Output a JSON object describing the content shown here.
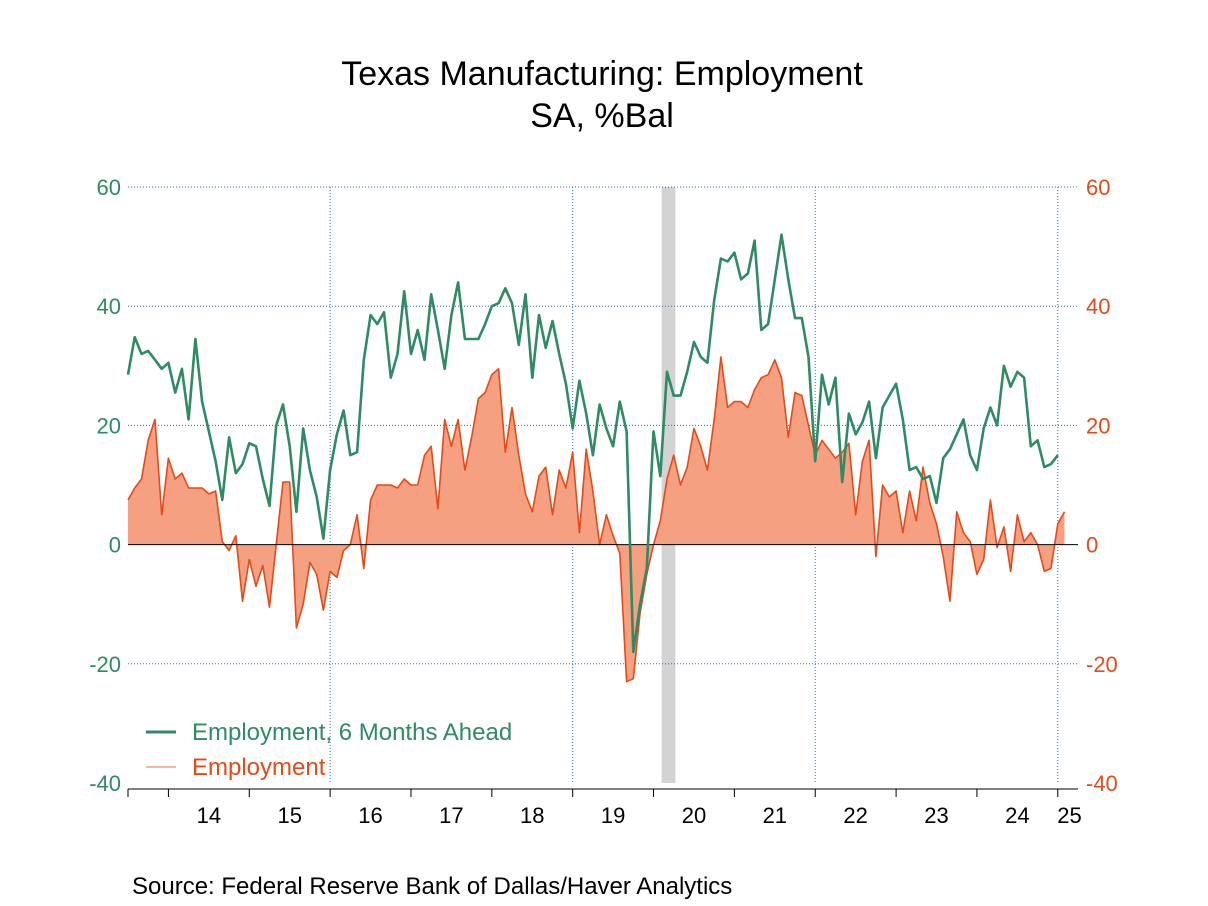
{
  "chart_data": {
    "type": "line",
    "title": "Texas Manufacturing: Employment",
    "subtitle": "SA, %Bal",
    "source": "Source:  Federal Reserve Bank of Dallas/Haver Analytics",
    "ylim": [
      -40,
      60
    ],
    "y_ticks": [
      60,
      40,
      20,
      0,
      -20,
      -40
    ],
    "y_tick_labels": [
      "60",
      "40",
      "20",
      "0",
      "-20",
      "-40"
    ],
    "x_range": [
      2013.5,
      2025.25
    ],
    "x_tick_labels": [
      "14",
      "15",
      "16",
      "17",
      "18",
      "19",
      "20",
      "21",
      "22",
      "23",
      "24",
      "25"
    ],
    "grid": "dotted",
    "legend_position": "bottom-left",
    "colors": {
      "ahead": "#2e8b66",
      "employment_line": "#e64a19",
      "employment_fill": "#f4a081",
      "recession": "#d3d3d3",
      "grid": "#2b6fb5"
    },
    "recession": [
      2020.1,
      2020.27
    ],
    "series": [
      {
        "name": "Employment, 6 Months Ahead",
        "style": "line",
        "values": [
          28.5,
          34.8,
          32.0,
          32.5,
          31.0,
          29.5,
          30.5,
          25.5,
          29.5,
          21.0,
          34.5,
          24.0,
          19.0,
          14.0,
          7.5,
          18.0,
          12.0,
          13.5,
          17.0,
          16.5,
          11.0,
          6.5,
          20.0,
          23.5,
          16.5,
          5.5,
          19.5,
          12.5,
          8.0,
          1.0,
          12.5,
          18.5,
          22.5,
          15.0,
          15.5,
          31.0,
          38.5,
          37.0,
          39.0,
          28.0,
          32.0,
          42.5,
          32.0,
          36.0,
          31.0,
          42.0,
          36.0,
          29.5,
          38.5,
          44.0,
          34.5,
          34.5,
          34.5,
          37.0,
          40.0,
          40.5,
          43.0,
          40.5,
          33.5,
          42.0,
          28.0,
          38.5,
          33.0,
          37.5,
          32.0,
          27.0,
          19.5,
          27.5,
          22.0,
          15.0,
          23.5,
          19.5,
          16.5,
          24.0,
          19.0,
          -18.0,
          -10.0,
          -4.0,
          19.0,
          11.5,
          29.0,
          25.0,
          25.0,
          29.0,
          34.0,
          31.5,
          30.5,
          41.0,
          48.0,
          47.5,
          49.0,
          44.5,
          45.5,
          51.0,
          36.0,
          37.0,
          44.5,
          52.0,
          44.5,
          38.0,
          38.0,
          31.5,
          14.0,
          28.5,
          23.5,
          28.0,
          10.5,
          22.0,
          18.5,
          20.5,
          24.0,
          14.5,
          23.0,
          25.0,
          27.0,
          21.0,
          12.5,
          13.0,
          11.0,
          11.5,
          7.0,
          14.5,
          16.0,
          18.5,
          21.0,
          15.0,
          12.5,
          19.5,
          23.0,
          20.0,
          30.0,
          26.5,
          29.0,
          28.0,
          16.5,
          17.5,
          13.0,
          13.5,
          15.0
        ]
      },
      {
        "name": "Employment",
        "style": "area",
        "values": [
          7.5,
          9.5,
          11.0,
          17.5,
          21.0,
          5.0,
          14.5,
          11.0,
          12.0,
          9.5,
          9.5,
          9.5,
          8.5,
          9.0,
          0.5,
          -1.0,
          1.5,
          -9.5,
          -2.5,
          -7.0,
          -3.5,
          -10.5,
          0.0,
          10.5,
          10.5,
          -14.0,
          -10.0,
          -3.0,
          -5.0,
          -11.0,
          -4.5,
          -5.5,
          -1.0,
          0.0,
          5.0,
          -4.0,
          7.5,
          10.0,
          10.0,
          10.0,
          9.5,
          11.0,
          10.0,
          10.0,
          15.0,
          16.5,
          6.0,
          21.0,
          16.5,
          21.0,
          12.5,
          18.0,
          24.5,
          25.5,
          28.5,
          29.5,
          15.5,
          23.0,
          15.0,
          8.5,
          5.5,
          11.5,
          13.0,
          5.0,
          12.5,
          9.5,
          15.5,
          2.0,
          16.0,
          9.0,
          0.0,
          5.0,
          1.5,
          -1.5,
          -23.0,
          -22.5,
          -11.5,
          -5.0,
          0.0,
          4.0,
          11.0,
          15.0,
          10.0,
          13.0,
          19.5,
          16.5,
          12.5,
          21.0,
          31.5,
          23.0,
          24.0,
          24.0,
          23.0,
          26.0,
          28.0,
          28.5,
          31.0,
          28.0,
          18.0,
          25.5,
          25.0,
          20.0,
          15.0,
          17.5,
          16.0,
          14.5,
          15.5,
          17.0,
          5.0,
          14.0,
          17.5,
          -2.0,
          10.0,
          8.0,
          9.0,
          2.0,
          9.0,
          4.0,
          13.0,
          7.0,
          3.5,
          -2.0,
          -9.5,
          5.5,
          2.0,
          0.5,
          -5.0,
          -2.5,
          7.5,
          -0.5,
          3.0,
          -4.5,
          5.0,
          0.5,
          2.0,
          0.0,
          -4.5,
          -4.0,
          3.5,
          5.5
        ]
      }
    ]
  }
}
